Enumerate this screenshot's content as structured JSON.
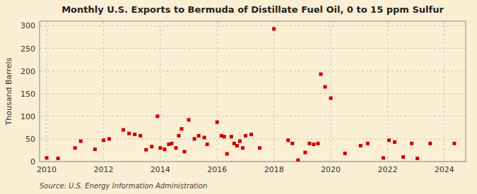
{
  "chart_data": {
    "type": "scatter",
    "title": "Monthly U.S. Exports to Bermuda of Distillate Fuel Oil, 0 to 15 ppm Sulfur",
    "ylabel": "Thousand Barrels",
    "source": "Source: U.S. Energy Information Administration",
    "color": "#cc0000",
    "marker": "square",
    "grid": true,
    "xlim": [
      2009.75,
      2024.75
    ],
    "ylim": [
      0,
      310
    ],
    "yticks": [
      0,
      50,
      100,
      150,
      200,
      250,
      300
    ],
    "xticks": [
      2010,
      2012,
      2014,
      2016,
      2018,
      2020,
      2022,
      2024
    ],
    "x": [
      2010.0,
      2010.4,
      2011.0,
      2011.2,
      2011.7,
      2012.0,
      2012.2,
      2012.7,
      2012.9,
      2013.1,
      2013.3,
      2013.5,
      2013.7,
      2013.9,
      2014.0,
      2014.15,
      2014.3,
      2014.4,
      2014.55,
      2014.65,
      2014.75,
      2014.85,
      2015.0,
      2015.2,
      2015.35,
      2015.55,
      2015.65,
      2016.0,
      2016.15,
      2016.25,
      2016.35,
      2016.5,
      2016.6,
      2016.7,
      2016.8,
      2016.9,
      2017.0,
      2017.2,
      2017.5,
      2018.0,
      2018.5,
      2018.65,
      2018.85,
      2019.1,
      2019.25,
      2019.4,
      2019.55,
      2019.65,
      2019.8,
      2020.0,
      2020.5,
      2021.05,
      2021.3,
      2021.85,
      2022.05,
      2022.25,
      2022.55,
      2022.85,
      2023.05,
      2023.5,
      2024.35
    ],
    "values": [
      8,
      7,
      30,
      45,
      27,
      47,
      50,
      70,
      62,
      60,
      57,
      26,
      33,
      100,
      30,
      27,
      38,
      40,
      30,
      57,
      72,
      22,
      92,
      50,
      57,
      53,
      38,
      87,
      57,
      55,
      17,
      55,
      40,
      35,
      45,
      30,
      57,
      60,
      30,
      293,
      47,
      40,
      3,
      20,
      40,
      38,
      40,
      193,
      165,
      140,
      18,
      35,
      40,
      8,
      47,
      43,
      10,
      40,
      7,
      40,
      40
    ]
  }
}
